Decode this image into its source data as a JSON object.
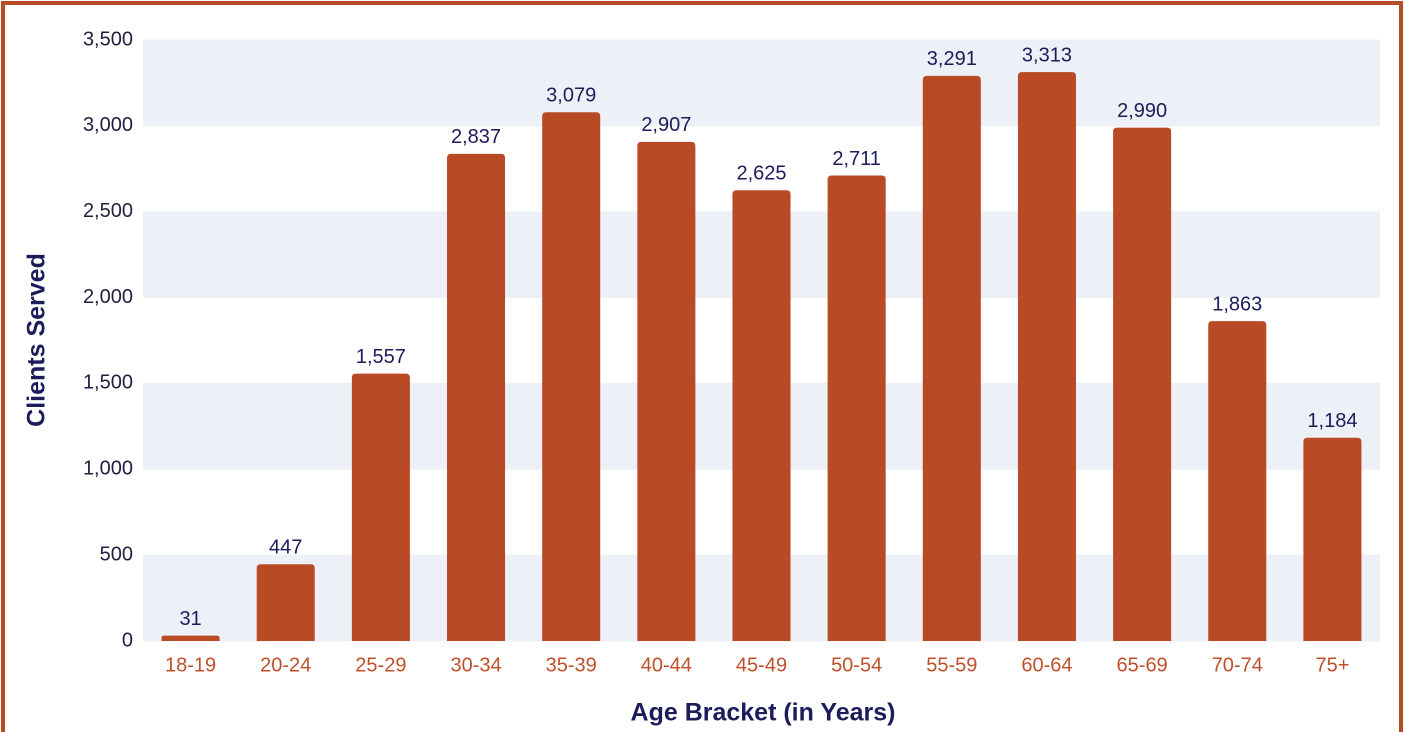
{
  "chart_data": {
    "type": "bar",
    "x_label": "Age Bracket (in Years)",
    "y_label": "Clients Served",
    "categories": [
      "18-19",
      "20-24",
      "25-29",
      "30-34",
      "35-39",
      "40-44",
      "45-49",
      "50-54",
      "55-59",
      "60-64",
      "65-69",
      "70-74",
      "75+"
    ],
    "values": [
      31,
      447,
      1557,
      2837,
      3079,
      2907,
      2625,
      2711,
      3291,
      3313,
      2990,
      1863,
      1184
    ],
    "value_labels": [
      "31",
      "447",
      "1,557",
      "2,837",
      "3,079",
      "2,907",
      "2,625",
      "2,711",
      "3,291",
      "3,313",
      "2,990",
      "1,863",
      "1,184"
    ],
    "color": "#b94a26",
    "ylim": [
      0,
      3500
    ],
    "yticks": [
      0,
      500,
      {
        "value": 1000,
        "label": "1,000"
      },
      {
        "value": 1500,
        "label": "1,500"
      },
      {
        "value": 2000,
        "label": "2,000"
      },
      {
        "value": 2500,
        "label": "2,500"
      },
      {
        "value": 3000,
        "label": "3,000"
      },
      {
        "value": 3500,
        "label": "3,500"
      }
    ],
    "grid": true
  }
}
